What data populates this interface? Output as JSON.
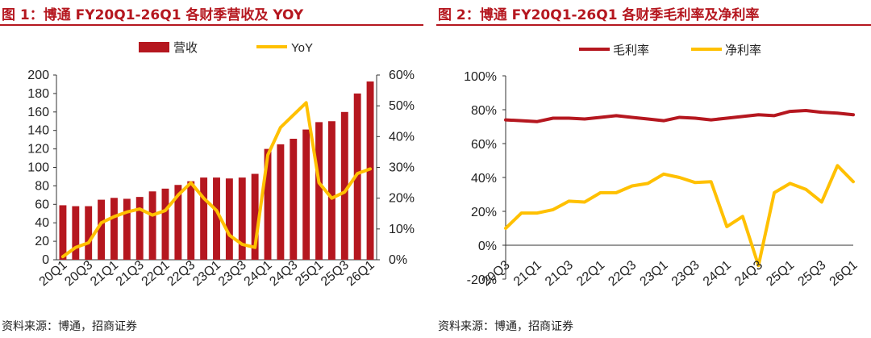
{
  "left_panel": {
    "title": "图 1：博通 FY20Q1-26Q1 各财季营收及 YOY",
    "source": "资料来源：博通，招商证券"
  },
  "right_panel": {
    "title": "图 2：博通 FY20Q1-26Q1 各财季毛利率及净利率",
    "source": "资料来源：博通，招商证券"
  },
  "colors": {
    "title": "#b5171f",
    "bar": "#b5171f",
    "line_yellow": "#ffc000",
    "line_red": "#b5171f"
  },
  "chart_data": [
    {
      "type": "bar",
      "categories": [
        "20Q1",
        "20Q2",
        "20Q3",
        "20Q4",
        "21Q1",
        "21Q2",
        "21Q3",
        "21Q4",
        "22Q1",
        "22Q2",
        "22Q3",
        "22Q4",
        "23Q1",
        "23Q2",
        "23Q3",
        "23Q4",
        "24Q1",
        "24Q2",
        "24Q3",
        "24Q4",
        "25Q1",
        "25Q2",
        "25Q3",
        "25Q4",
        "26Q1"
      ],
      "tick_labels": [
        "20Q1",
        "20Q3",
        "21Q1",
        "21Q3",
        "22Q1",
        "22Q3",
        "23Q1",
        "23Q3",
        "24Q1",
        "24Q3",
        "25Q1",
        "25Q3",
        "26Q1"
      ],
      "series": [
        {
          "name": "营收",
          "kind": "bar",
          "axis": "left",
          "values": [
            59,
            58,
            58,
            65,
            67,
            66,
            68,
            74,
            77,
            81,
            85,
            89,
            89,
            88,
            89,
            93,
            120,
            125,
            131,
            141,
            149,
            150,
            160,
            180,
            193
          ]
        },
        {
          "name": "YoY",
          "kind": "line",
          "axis": "right",
          "values": [
            1,
            4,
            5.5,
            12,
            14,
            15.5,
            16.5,
            14.5,
            16,
            21,
            25,
            20,
            16,
            8,
            5,
            4,
            34,
            43,
            47,
            51,
            25,
            20,
            22,
            28,
            29.5
          ]
        }
      ],
      "y_left": {
        "range": [
          0,
          200
        ],
        "ticks": [
          "0",
          "20",
          "40",
          "60",
          "80",
          "100",
          "120",
          "140",
          "160",
          "180",
          "200"
        ]
      },
      "y_right": {
        "range": [
          0,
          60
        ],
        "ticks": [
          "0%",
          "10%",
          "20%",
          "30%",
          "40%",
          "50%",
          "60%"
        ]
      },
      "legend": [
        "营收",
        "YoY"
      ]
    },
    {
      "type": "line",
      "categories": [
        "20Q3",
        "20Q4",
        "21Q1",
        "21Q2",
        "21Q3",
        "21Q4",
        "22Q1",
        "22Q2",
        "22Q3",
        "22Q4",
        "23Q1",
        "23Q2",
        "23Q3",
        "23Q4",
        "24Q1",
        "24Q2",
        "24Q3",
        "24Q4",
        "25Q1",
        "25Q2",
        "25Q3",
        "25Q4",
        "26Q1"
      ],
      "tick_labels": [
        "20Q3",
        "21Q1",
        "21Q3",
        "22Q1",
        "22Q3",
        "23Q1",
        "23Q3",
        "24Q1",
        "24Q3",
        "25Q1",
        "25Q3",
        "26Q1"
      ],
      "series": [
        {
          "name": "毛利率",
          "values": [
            74,
            73.5,
            73,
            75,
            75,
            74.5,
            75.5,
            76.5,
            75.5,
            74.5,
            73.5,
            75.5,
            75,
            74,
            75,
            76,
            77,
            76.5,
            79,
            79.5,
            78.5,
            78,
            77
          ]
        },
        {
          "name": "净利率",
          "values": [
            10,
            19,
            19,
            21,
            26,
            25.5,
            31,
            31,
            35,
            36.5,
            42,
            40,
            37,
            37.5,
            11,
            17,
            -12,
            31,
            36.5,
            33,
            25.5,
            47,
            37.5
          ]
        }
      ],
      "y": {
        "range": [
          -20,
          100
        ],
        "ticks": [
          "-20%",
          "0%",
          "20%",
          "40%",
          "60%",
          "80%",
          "100%"
        ]
      },
      "legend": [
        "毛利率",
        "净利率"
      ]
    }
  ]
}
